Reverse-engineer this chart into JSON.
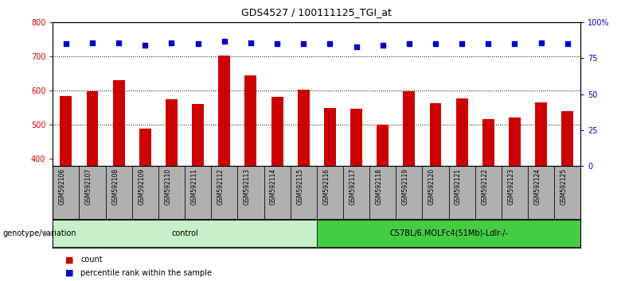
{
  "title": "GDS4527 / 100111125_TGI_at",
  "samples": [
    "GSM592106",
    "GSM592107",
    "GSM592108",
    "GSM592109",
    "GSM592110",
    "GSM592111",
    "GSM592112",
    "GSM592113",
    "GSM592114",
    "GSM592115",
    "GSM592116",
    "GSM592117",
    "GSM592118",
    "GSM592119",
    "GSM592120",
    "GSM592121",
    "GSM592122",
    "GSM592123",
    "GSM592124",
    "GSM592125"
  ],
  "counts": [
    585,
    598,
    632,
    490,
    575,
    560,
    703,
    645,
    582,
    604,
    550,
    547,
    500,
    598,
    563,
    578,
    516,
    522,
    565,
    540
  ],
  "percentile_ranks": [
    85,
    86,
    86,
    84,
    86,
    85,
    87,
    86,
    85,
    85,
    85,
    83,
    84,
    85,
    85,
    85,
    85,
    85,
    86,
    85
  ],
  "groups": [
    {
      "label": "control",
      "start": 0,
      "end": 9,
      "color": "#c8f0c8"
    },
    {
      "label": "C57BL/6.MOLFc4(51Mb)-Ldlr-/-",
      "start": 10,
      "end": 19,
      "color": "#44cc44"
    }
  ],
  "group_label": "genotype/variation",
  "bar_color": "#cc0000",
  "dot_color": "#0000cc",
  "ylim_left": [
    380,
    800
  ],
  "ylim_right": [
    0,
    100
  ],
  "yticks_left": [
    400,
    500,
    600,
    700,
    800
  ],
  "yticks_right": [
    0,
    25,
    50,
    75,
    100
  ],
  "grid_values": [
    500,
    600,
    700
  ],
  "bg_color": "#ffffff",
  "tick_label_area_color": "#b0b0b0",
  "legend_items": [
    {
      "color": "#cc0000",
      "label": "count"
    },
    {
      "color": "#0000cc",
      "label": "percentile rank within the sample"
    }
  ]
}
